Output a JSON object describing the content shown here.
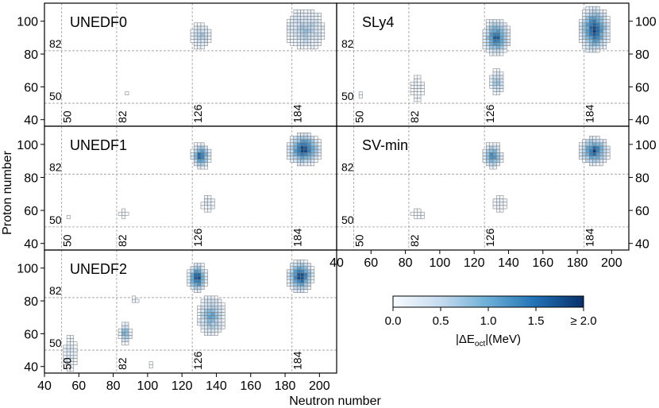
{
  "chart_data": {
    "type": "heatmap",
    "xlabel": "Neutron number",
    "ylabel": "Proton number",
    "xlim": [
      40,
      210
    ],
    "ylim": [
      36,
      111
    ],
    "x_ticks": [
      40,
      60,
      80,
      100,
      120,
      140,
      160,
      180,
      200
    ],
    "y_ticks": [
      40,
      60,
      80,
      100
    ],
    "magic_neutron": [
      "50",
      "82",
      "126",
      "184"
    ],
    "magic_proton": [
      "50",
      "82"
    ],
    "colorbar": {
      "label_prefix": "|ΔE",
      "label_sub": "oct",
      "label_suffix": "|(MeV)",
      "ticks": [
        "0.0",
        "0.5",
        "1.0",
        "1.5",
        "≥ 2.0"
      ],
      "range": [
        0,
        2
      ],
      "colors": [
        "#f7fbff",
        "#c6dbef",
        "#6baed6",
        "#2171b5",
        "#08306b"
      ]
    },
    "panels": [
      {
        "name": "UNEDF0",
        "regions": [
          {
            "n": [
              126,
              136
            ],
            "z": [
              84,
              98
            ],
            "peak": 0.8
          },
          {
            "n": [
              182,
              202
            ],
            "z": [
              84,
              106
            ],
            "peak": 0.8
          },
          {
            "n": [
              87,
              89
            ],
            "z": [
              55,
              56
            ],
            "peak": 0.0
          }
        ]
      },
      {
        "name": "SLy4",
        "regions": [
          {
            "n": [
              53,
              56
            ],
            "z": [
              54,
              56
            ],
            "peak": 0.0
          },
          {
            "n": [
              84,
              90
            ],
            "z": [
              52,
              66
            ],
            "peak": 0.2
          },
          {
            "n": [
              126,
              140
            ],
            "z": [
              80,
              100
            ],
            "peak": 1.8
          },
          {
            "n": [
              130,
              137
            ],
            "z": [
              56,
              70
            ],
            "peak": 0.9
          },
          {
            "n": [
              182,
              198
            ],
            "z": [
              82,
              108
            ],
            "peak": 2.0
          }
        ]
      },
      {
        "name": "UNEDF1",
        "regions": [
          {
            "n": [
              53,
              54
            ],
            "z": [
              55,
              56
            ],
            "peak": 0.0
          },
          {
            "n": [
              84,
              88
            ],
            "z": [
              56,
              60
            ],
            "peak": 0.0
          },
          {
            "n": [
              132,
              138
            ],
            "z": [
              60,
              68
            ],
            "peak": 0.3
          },
          {
            "n": [
              126,
              136
            ],
            "z": [
              86,
              100
            ],
            "peak": 1.8
          },
          {
            "n": [
              182,
              200
            ],
            "z": [
              88,
              106
            ],
            "peak": 2.0
          }
        ]
      },
      {
        "name": "SV-min",
        "regions": [
          {
            "n": [
              84,
              90
            ],
            "z": [
              55,
              60
            ],
            "peak": 0.0
          },
          {
            "n": [
              132,
              138
            ],
            "z": [
              60,
              68
            ],
            "peak": 0.2
          },
          {
            "n": [
              126,
              136
            ],
            "z": [
              86,
              100
            ],
            "peak": 1.5
          },
          {
            "n": [
              182,
              198
            ],
            "z": [
              88,
              104
            ],
            "peak": 1.8
          }
        ]
      },
      {
        "name": "UNEDF2",
        "regions": [
          {
            "n": [
              52,
              58
            ],
            "z": [
              38,
              58
            ],
            "peak": 0.4
          },
          {
            "n": [
              84,
              90
            ],
            "z": [
              54,
              66
            ],
            "peak": 1.2
          },
          {
            "n": [
              90,
              95
            ],
            "z": [
              80,
              82
            ],
            "peak": 0.0
          },
          {
            "n": [
              102,
              103
            ],
            "z": [
              40,
              42
            ],
            "peak": 0.0
          },
          {
            "n": [
              124,
              134
            ],
            "z": [
              86,
              102
            ],
            "peak": 2.0
          },
          {
            "n": [
              130,
              144
            ],
            "z": [
              60,
              82
            ],
            "peak": 1.2
          },
          {
            "n": [
              182,
              196
            ],
            "z": [
              86,
              104
            ],
            "peak": 2.0
          }
        ]
      }
    ]
  }
}
